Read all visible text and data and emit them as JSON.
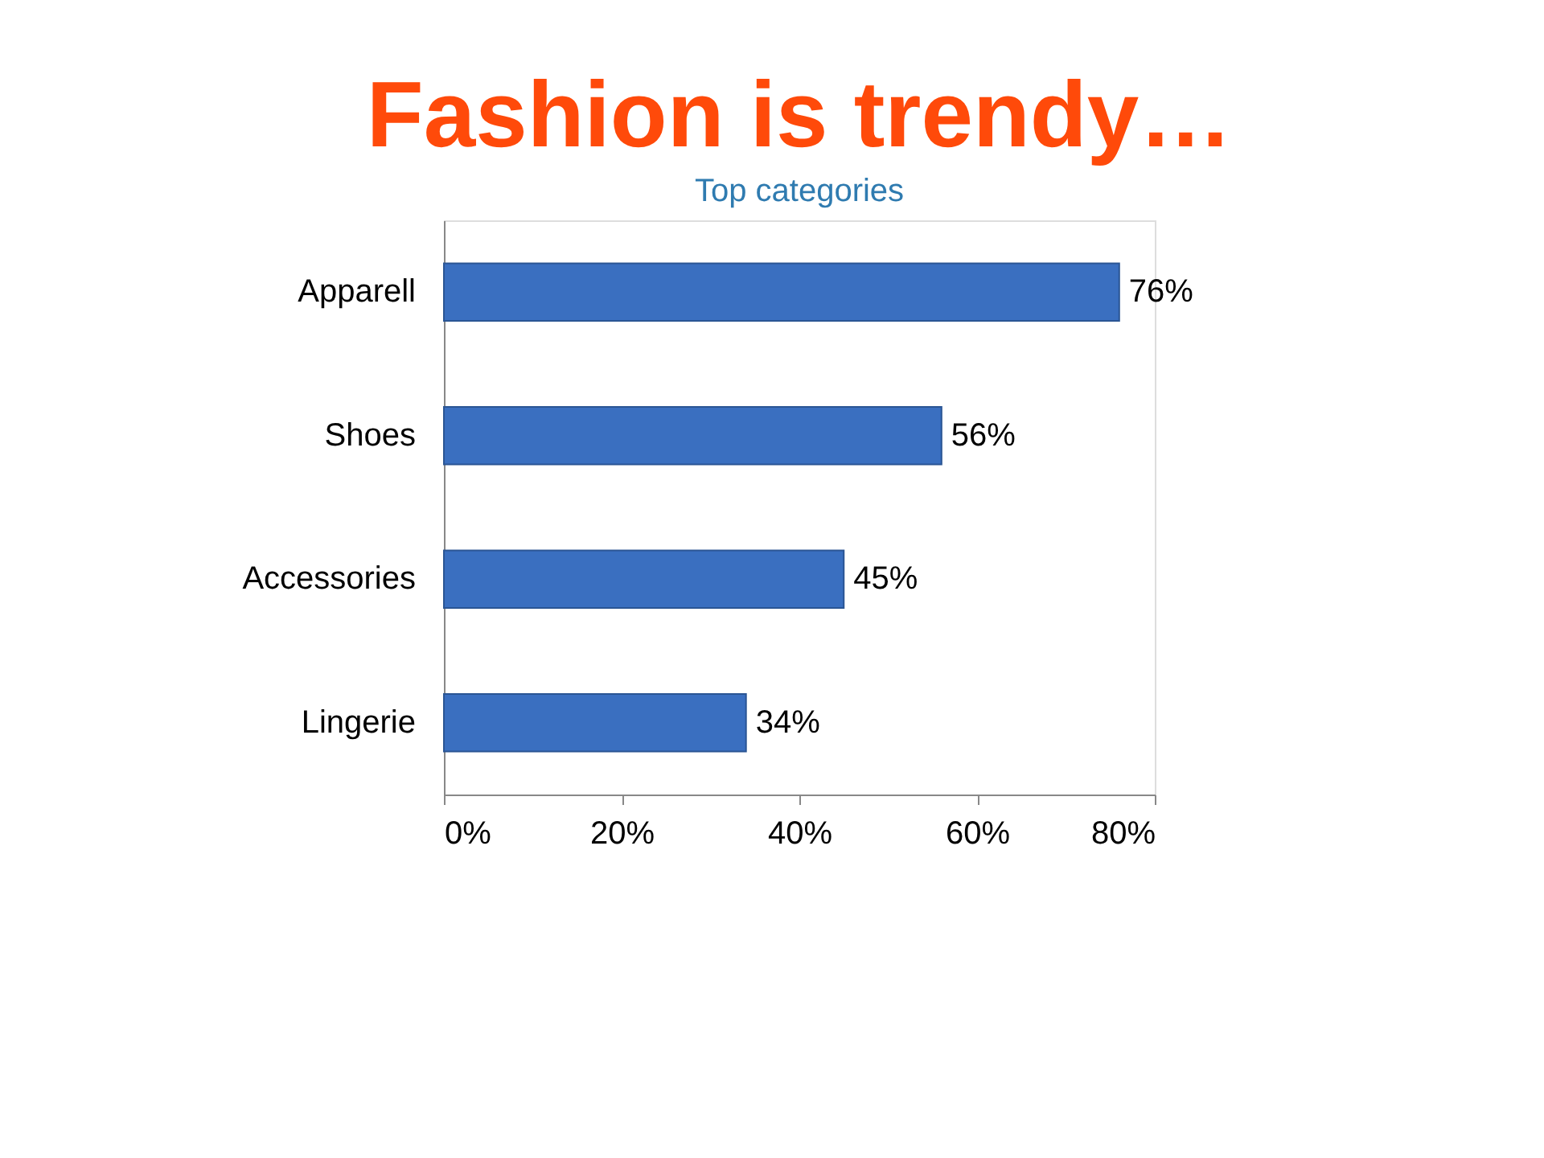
{
  "chart_data": {
    "type": "bar",
    "orientation": "horizontal",
    "title": "Fashion is trendy…",
    "subtitle": "Top categories",
    "categories": [
      "Apparell",
      "Shoes",
      "Accessories",
      "Lingerie"
    ],
    "values": [
      76,
      56,
      45,
      34
    ],
    "color": "#3a6fc0",
    "value_labels": [
      "76%",
      "56%",
      "45%",
      "34%"
    ],
    "xlim": [
      0,
      80
    ],
    "xticks": [
      {
        "value": 0,
        "label": "0%"
      },
      {
        "value": 20,
        "label": "20%"
      },
      {
        "value": 40,
        "label": "40%"
      },
      {
        "value": 60,
        "label": "60%"
      },
      {
        "value": 80,
        "label": "80%"
      }
    ],
    "grid": false
  }
}
